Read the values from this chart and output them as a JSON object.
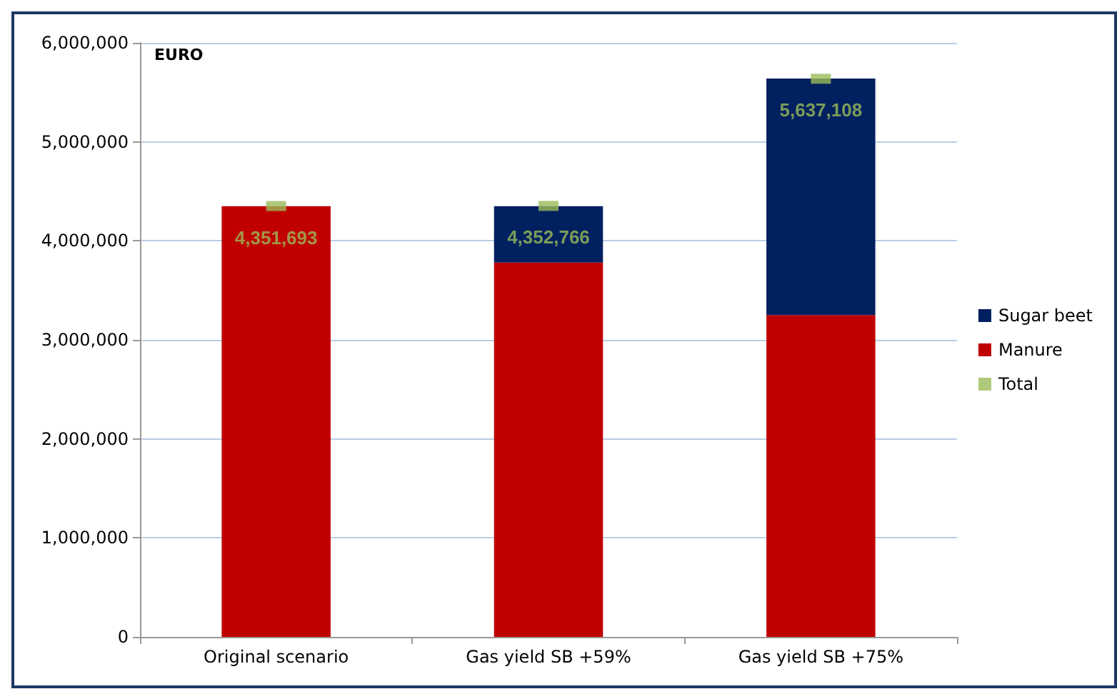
{
  "chart_data": {
    "type": "bar",
    "stacked": true,
    "ylabel": "EURO",
    "categories": [
      "Original scenario",
      "Gas yield SB +59%",
      "Gas yield SB +75%"
    ],
    "series": [
      {
        "name": "Manure",
        "color": "#c00000",
        "values": [
          4350000,
          3780000,
          3250000
        ]
      },
      {
        "name": "Sugar beet",
        "color": "#002060",
        "values": [
          0,
          570000,
          2390000
        ]
      },
      {
        "name": "Total",
        "type": "scatter",
        "marker": "square",
        "color": "#9bbb59",
        "values": [
          4351693,
          4352766,
          5637108
        ],
        "value_labels": [
          "4,351,693",
          "4,352,766",
          "5,637,108"
        ]
      }
    ],
    "ylim": [
      0,
      6000000
    ],
    "yticks": [
      0,
      {
        "value": 1000000,
        "label": "1,000,000"
      },
      {
        "value": 2000000,
        "label": "2,000,000"
      },
      {
        "value": 3000000,
        "label": "3,000,000"
      },
      {
        "value": 4000000,
        "label": "4,000,000"
      },
      {
        "value": 5000000,
        "label": "5,000,000"
      },
      {
        "value": 6000000,
        "label": "6,000,000"
      }
    ],
    "grid": "y",
    "legend": "right"
  }
}
